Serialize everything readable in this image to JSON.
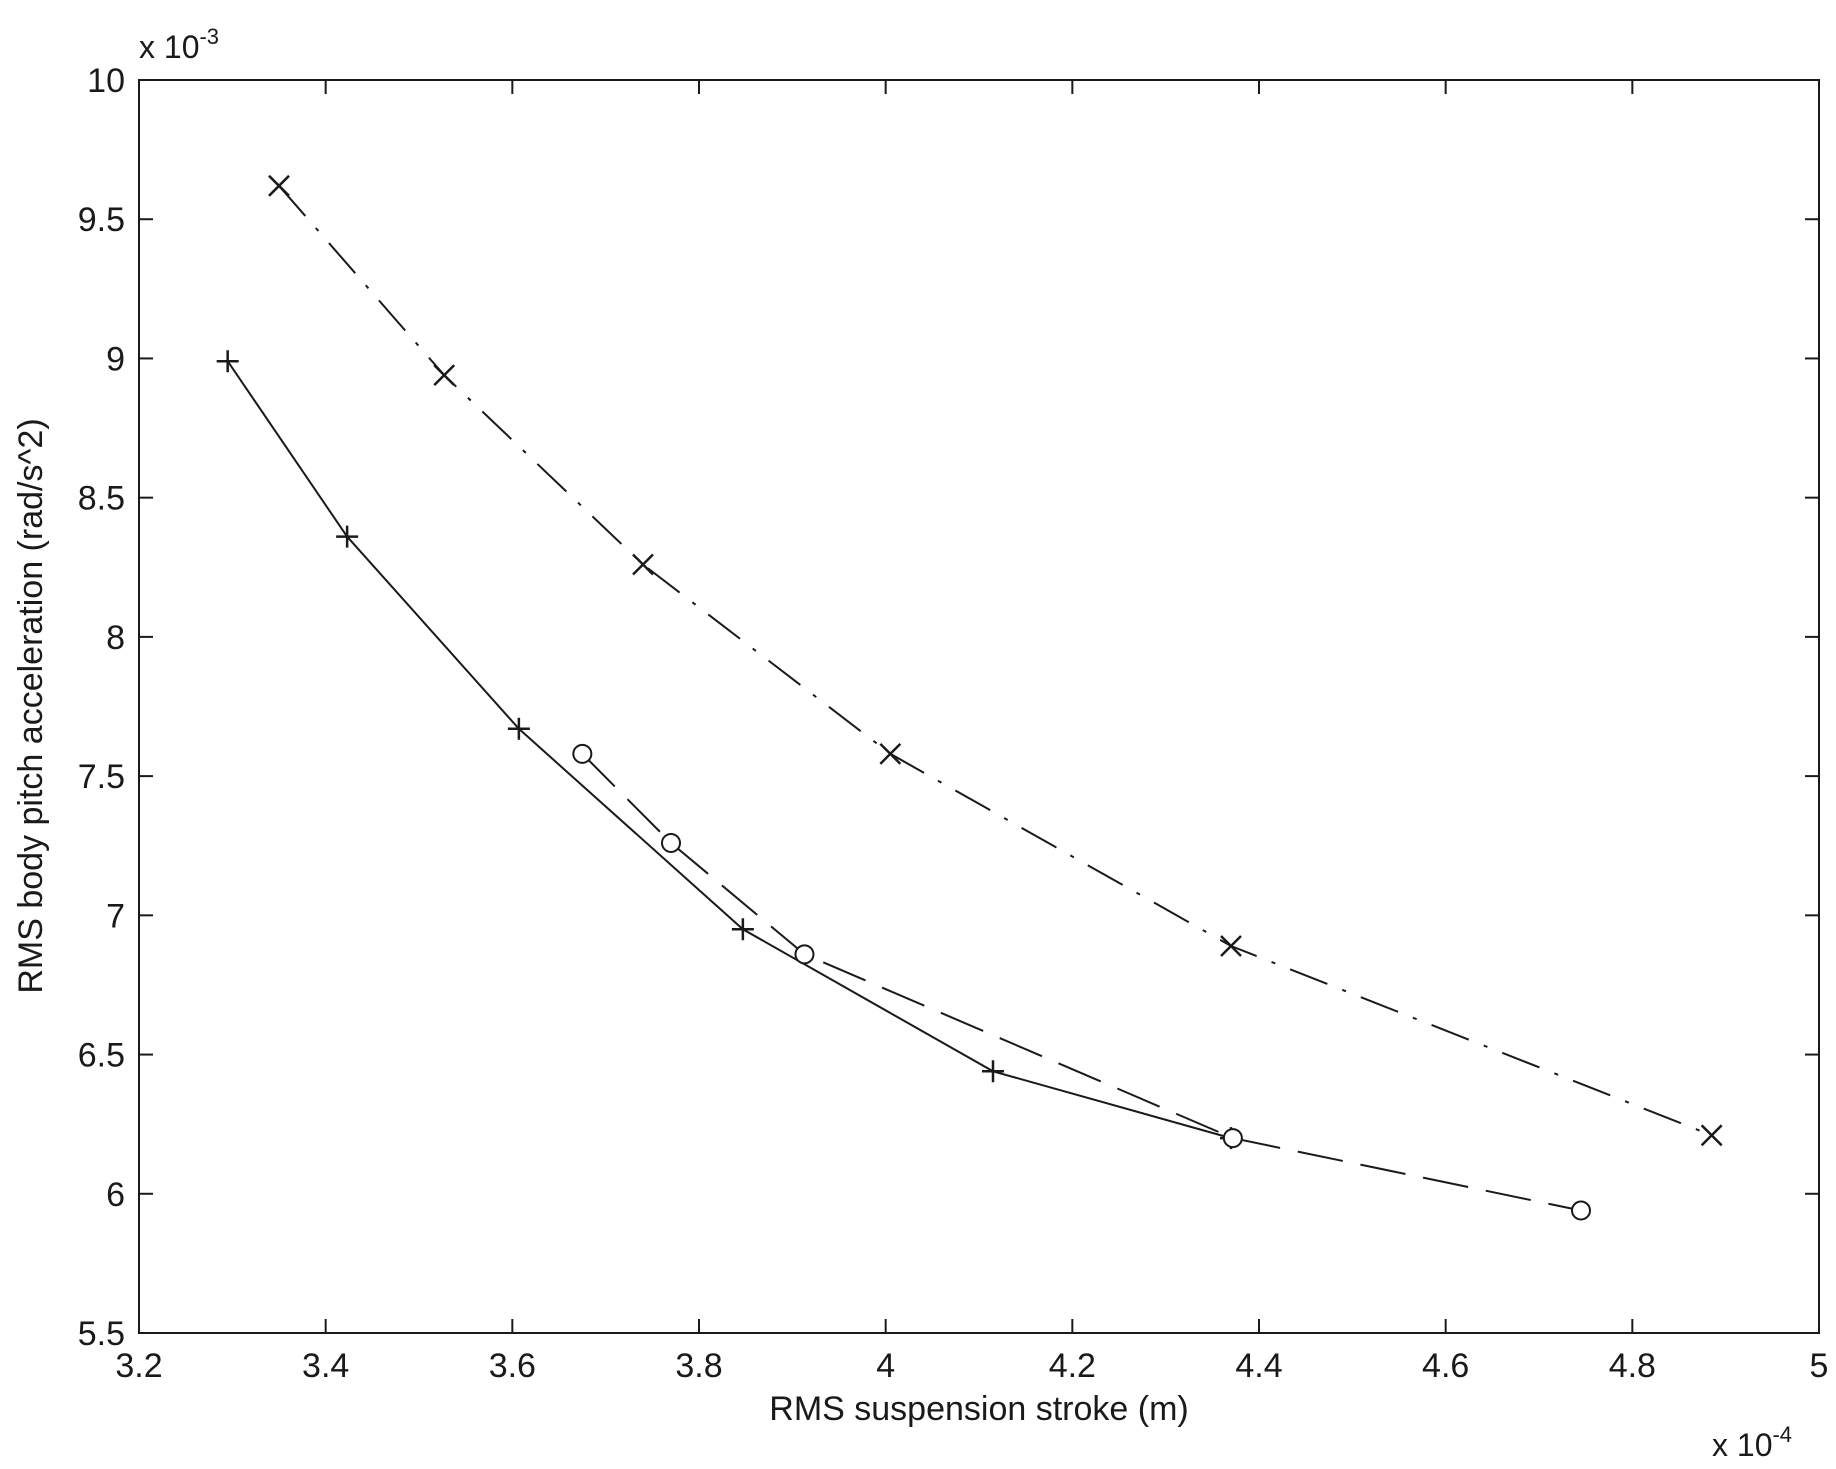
{
  "chart_data": {
    "type": "line",
    "title": "",
    "xlabel": "RMS suspension stroke  (m)",
    "ylabel": "RMS body pitch acceleration  (rad/s^2)",
    "x_multiplier": {
      "base": "x 10",
      "exponent": "-4"
    },
    "y_multiplier": {
      "base": "x 10",
      "exponent": "-3"
    },
    "xlim": [
      3.2,
      5.0
    ],
    "ylim": [
      5.5,
      10.0
    ],
    "xticks": [
      "3.2",
      "3.4",
      "3.6",
      "3.8",
      "4",
      "4.2",
      "4.4",
      "4.6",
      "4.8",
      "5"
    ],
    "yticks": [
      "5.5",
      "6",
      "6.5",
      "7",
      "7.5",
      "8",
      "8.5",
      "9",
      "9.5",
      "10"
    ],
    "grid": false,
    "series": [
      {
        "marker": "plus",
        "line_style": "solid",
        "color": "#1a1a1a",
        "x": [
          3.295,
          3.423,
          3.607,
          3.847,
          4.115,
          4.37
        ],
        "y": [
          8.99,
          8.36,
          7.67,
          6.95,
          6.44,
          6.2
        ]
      },
      {
        "marker": "circle",
        "line_style": "dashed",
        "color": "#1a1a1a",
        "x": [
          3.675,
          3.77,
          3.913,
          4.372,
          4.745
        ],
        "y": [
          7.58,
          7.26,
          6.86,
          6.2,
          5.94
        ]
      },
      {
        "marker": "x",
        "line_style": "dashdot",
        "color": "#1a1a1a",
        "x": [
          3.35,
          3.527,
          3.74,
          4.005,
          4.37,
          4.885
        ],
        "y": [
          9.62,
          8.94,
          8.26,
          7.58,
          6.89,
          6.21
        ]
      }
    ]
  }
}
